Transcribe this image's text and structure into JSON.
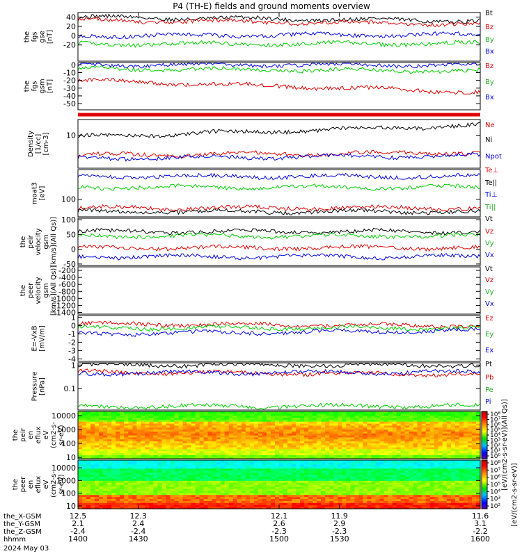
{
  "title": "P4 (TH-E) fields and ground moments overview",
  "colors": {
    "black": "#000000",
    "red": "#e00000",
    "green": "#00d000",
    "blue": "#0000e0",
    "legend_green": "#22aa22"
  },
  "chart_data": [
    {
      "id": "fgs_gse",
      "type": "line",
      "ylabel": [
        "the",
        "fgs",
        "gse",
        "[nT]"
      ],
      "ylim": [
        -55,
        50
      ],
      "yticks": [
        40,
        20,
        0,
        -20
      ],
      "series": [
        {
          "name": "Bt",
          "color": "#000000",
          "start": [
            1400,
            40
          ],
          "end": [
            1600,
            32
          ]
        },
        {
          "name": "Bz",
          "color": "#e00000",
          "start": [
            1400,
            33
          ],
          "end": [
            1600,
            25
          ]
        },
        {
          "name": "By",
          "color": "#00d000",
          "start": [
            1400,
            -18
          ],
          "end": [
            1600,
            -17
          ]
        },
        {
          "name": "Bx",
          "color": "#0000e0",
          "start": [
            1400,
            0
          ],
          "end": [
            1600,
            2
          ]
        }
      ]
    },
    {
      "id": "fgs_gsm",
      "type": "line",
      "ylabel": [
        "the",
        "fgs",
        "gsm",
        "[nT]"
      ],
      "ylim": [
        -58,
        3
      ],
      "yticks": [
        0,
        -10,
        -20,
        -30,
        -40,
        -50
      ],
      "series": [
        {
          "name": "Bz",
          "color": "#e00000",
          "start": [
            1400,
            -20
          ],
          "end": [
            1600,
            -35
          ]
        },
        {
          "name": "By",
          "color": "#00d000",
          "start": [
            1400,
            -5
          ],
          "end": [
            1600,
            -8
          ]
        },
        {
          "name": "Bx",
          "color": "#0000e0",
          "start": [
            1400,
            0
          ],
          "end": [
            1600,
            0
          ]
        }
      ]
    },
    {
      "id": "density",
      "type": "line",
      "ylabel": [
        "Density",
        "[1/cc]",
        "[cm-3]"
      ],
      "ylim": [
        1,
        30
      ],
      "scale": "log",
      "yticks": [
        10
      ],
      "series": [
        {
          "name": "Ne",
          "color": "#e00000",
          "start": [
            1400,
            2.5
          ],
          "end": [
            1600,
            3
          ]
        },
        {
          "name": "Ni",
          "color": "#000000",
          "start": [
            1400,
            9
          ],
          "end": [
            1600,
            20
          ]
        },
        {
          "name": "Npot",
          "color": "#0000e0",
          "start": [
            1400,
            2
          ],
          "end": [
            1600,
            2.4
          ]
        }
      ]
    },
    {
      "id": "temperature",
      "type": "line",
      "ylabel": [
        "moat3",
        "[eV]"
      ],
      "ylim": [
        20,
        1500
      ],
      "scale": "log",
      "yticks": [
        100
      ],
      "series": [
        {
          "name": "Te⊥",
          "color": "#e00000",
          "start": [
            1400,
            45
          ],
          "end": [
            1600,
            45
          ]
        },
        {
          "name": "Te||",
          "color": "#000000",
          "start": [
            1400,
            32
          ],
          "end": [
            1600,
            32
          ]
        },
        {
          "name": "Ti⊥",
          "color": "#0000e0",
          "start": [
            1400,
            800
          ],
          "end": [
            1600,
            800
          ]
        },
        {
          "name": "Ti||",
          "color": "#00d000",
          "start": [
            1400,
            300
          ],
          "end": [
            1600,
            300
          ]
        }
      ]
    },
    {
      "id": "peir_velocity",
      "type": "line",
      "ylabel": [
        "the",
        "peir",
        "velocity",
        "gsm",
        "[km/s](All Qs)]"
      ],
      "ylim": [
        -55,
        105
      ],
      "yticks": [
        100,
        50,
        0,
        -50
      ],
      "series": [
        {
          "name": "Vt",
          "color": "#000000",
          "start": [
            1400,
            60
          ],
          "end": [
            1600,
            60
          ]
        },
        {
          "name": "Vz",
          "color": "#e00000",
          "start": [
            1400,
            5
          ],
          "end": [
            1600,
            5
          ]
        },
        {
          "name": "Vy",
          "color": "#00d000",
          "start": [
            1400,
            45
          ],
          "end": [
            1600,
            45
          ]
        },
        {
          "name": "Vx",
          "color": "#0000e0",
          "start": [
            1400,
            -25
          ],
          "end": [
            1600,
            -25
          ]
        }
      ]
    },
    {
      "id": "peer_velocity",
      "type": "line",
      "ylabel": [
        "the",
        "peer",
        "velocity",
        "gsm",
        "[km/s](All Qs)]"
      ],
      "ylim": [
        -1450,
        -100
      ],
      "yticks": [
        -200,
        -400,
        -600,
        -800,
        -1000,
        -1200,
        -1400
      ],
      "series": [
        {
          "name": "Vt",
          "color": "#000000"
        },
        {
          "name": "Vz",
          "color": "#e00000"
        },
        {
          "name": "Vy",
          "color": "#00d000"
        },
        {
          "name": "Vx",
          "color": "#0000e0"
        }
      ]
    },
    {
      "id": "efield",
      "type": "line",
      "ylabel": [
        "E=-VxB",
        "[mV/m]"
      ],
      "ylim": [
        -4.3,
        1.2
      ],
      "yticks": [
        1,
        0,
        -1,
        -2,
        -3,
        -4
      ],
      "series": [
        {
          "name": "Ez",
          "color": "#e00000",
          "start": [
            1400,
            0.2
          ],
          "end": [
            1600,
            0
          ]
        },
        {
          "name": "Ey",
          "color": "#00d000",
          "start": [
            1400,
            -0.3
          ],
          "end": [
            1600,
            -0.3
          ]
        },
        {
          "name": "Ex",
          "color": "#0000e0",
          "start": [
            1400,
            -1.0
          ],
          "end": [
            1600,
            -0.6
          ]
        }
      ]
    },
    {
      "id": "pressure",
      "type": "line",
      "ylabel": [
        "Pressure",
        "[nPa]"
      ],
      "ylim": [
        0.012,
        1.25
      ],
      "scale": "log",
      "yticks": [
        1.0,
        0.1
      ],
      "series": [
        {
          "name": "Pt",
          "color": "#000000",
          "start": [
            1400,
            1.0
          ],
          "end": [
            1600,
            1.0
          ]
        },
        {
          "name": "Pb",
          "color": "#e00000",
          "start": [
            1400,
            0.5
          ],
          "end": [
            1600,
            0.4
          ]
        },
        {
          "name": "Pe",
          "color": "#00d000",
          "start": [
            1400,
            0.017
          ],
          "end": [
            1600,
            0.018
          ]
        },
        {
          "name": "Pi",
          "color": "#0000e0",
          "start": [
            1400,
            0.45
          ],
          "end": [
            1600,
            0.5
          ]
        }
      ]
    },
    {
      "id": "peir_eflux",
      "type": "heatmap",
      "ylabel": [
        "the",
        "peir",
        "en",
        "eflux",
        "eV",
        "(cm2-s-",
        "sr-eV)"
      ],
      "ylim": [
        8,
        20000
      ],
      "scale": "log",
      "yticks": [
        10000,
        1000,
        100,
        10
      ]
    },
    {
      "id": "peer_eflux",
      "type": "heatmap",
      "ylabel": [
        "the",
        "peer",
        "en",
        "eflux",
        "eV",
        "(cm2-s-",
        "sr-eV)"
      ],
      "ylim": [
        6,
        40000
      ],
      "scale": "log",
      "yticks": [
        10000,
        1000,
        100,
        10
      ]
    }
  ],
  "colorbars": [
    {
      "ticks": [
        "10⁸",
        "10⁷",
        "10⁶",
        "10⁵",
        "10⁴",
        "10³",
        "10²",
        "10¹",
        "10⁰"
      ]
    },
    {
      "ticks": [
        "10⁸",
        "10⁷",
        "10⁶",
        "10⁵",
        "10⁴",
        "10³",
        "10²"
      ]
    }
  ],
  "colorbar_label": "[eV/(cm2-s-sr-eV)]",
  "colorbar_label_overlap": "[eV/(cm2-s-sr-eV)](All Qs)]",
  "x_axis": {
    "range": [
      1400,
      1600
    ],
    "rows": [
      {
        "label": "the_X-GSM",
        "values": [
          "12.5",
          "12.3",
          "12.1",
          "11.9",
          "11.6"
        ]
      },
      {
        "label": "the_Y-GSM",
        "values": [
          "2.1",
          "2.4",
          "2.6",
          "2.9",
          "3.1"
        ]
      },
      {
        "label": "the_Z-GSM",
        "values": [
          "-2.4",
          "-2.4",
          "-2.3",
          "-2.3",
          "-2.2"
        ]
      },
      {
        "label": "hhmm",
        "values": [
          "1400",
          "1430",
          "1500",
          "1530",
          "1600"
        ]
      }
    ],
    "date": "2024 May 03"
  }
}
